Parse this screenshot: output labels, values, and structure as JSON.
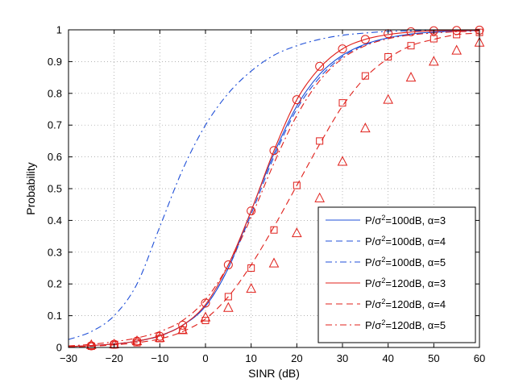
{
  "chart_data": {
    "type": "line",
    "xlabel": "SINR (dB)",
    "ylabel": "Probability",
    "xlim": [
      -30,
      60
    ],
    "ylim": [
      0,
      1
    ],
    "xticks": [
      -30,
      -20,
      -10,
      0,
      10,
      20,
      30,
      40,
      50,
      60
    ],
    "xtick_labels": [
      "−30",
      "−20",
      "−10",
      "0",
      "10",
      "20",
      "30",
      "40",
      "50",
      "60"
    ],
    "yticks": [
      0,
      0.1,
      0.2,
      0.3,
      0.4,
      0.5,
      0.6,
      0.7,
      0.8,
      0.9,
      1
    ],
    "ytick_labels": [
      "0",
      "0.1",
      "0.2",
      "0.3",
      "0.4",
      "0.5",
      "0.6",
      "0.7",
      "0.8",
      "0.9",
      "1"
    ],
    "grid": true,
    "legend_position": "bottom-right",
    "legend": [
      {
        "label": "P/σ²=100dB, α=3",
        "prefix": "P/σ",
        "sup": "2",
        "suffix": "=100dB, α=3",
        "color": "#1f4fd8",
        "dash": "solid",
        "marker": "none"
      },
      {
        "label": "P/σ²=100dB, α=4",
        "prefix": "P/σ",
        "sup": "2",
        "suffix": "=100dB, α=4",
        "color": "#1f4fd8",
        "dash": "dashed",
        "marker": "none"
      },
      {
        "label": "P/σ²=100dB, α=5",
        "prefix": "P/σ",
        "sup": "2",
        "suffix": "=100dB, α=5",
        "color": "#1f4fd8",
        "dash": "dashdot",
        "marker": "none"
      },
      {
        "label": "P/σ²=120dB, α=3",
        "prefix": "P/σ",
        "sup": "2",
        "suffix": "=120dB, α=3",
        "color": "#e0201b",
        "dash": "solid",
        "marker": "none"
      },
      {
        "label": "P/σ²=120dB, α=4",
        "prefix": "P/σ",
        "sup": "2",
        "suffix": "=120dB, α=4",
        "color": "#e0201b",
        "dash": "dashed",
        "marker": "none"
      },
      {
        "label": "P/σ²=120dB, α=5",
        "prefix": "P/σ",
        "sup": "2",
        "suffix": "=120dB, α=5",
        "color": "#e0201b",
        "dash": "dashdot",
        "marker": "none"
      }
    ],
    "curves": [
      {
        "color": "#1f4fd8",
        "dash": "solid",
        "x": [
          -30,
          -25,
          -20,
          -15,
          -10,
          -5,
          0,
          5,
          10,
          15,
          20,
          25,
          30,
          35,
          40,
          45,
          50,
          55,
          60
        ],
        "y": [
          0.003,
          0.006,
          0.011,
          0.02,
          0.037,
          0.07,
          0.13,
          0.25,
          0.43,
          0.61,
          0.76,
          0.86,
          0.92,
          0.955,
          0.975,
          0.987,
          0.993,
          0.996,
          0.998
        ]
      },
      {
        "color": "#1f4fd8",
        "dash": "dashed",
        "x": [
          -30,
          -25,
          -20,
          -15,
          -10,
          -5,
          0,
          5,
          10,
          15,
          20,
          25,
          30,
          35,
          40,
          45,
          50,
          55,
          60
        ],
        "y": [
          0.003,
          0.006,
          0.011,
          0.02,
          0.036,
          0.07,
          0.13,
          0.25,
          0.42,
          0.6,
          0.75,
          0.85,
          0.915,
          0.953,
          0.974,
          0.986,
          0.992,
          0.996,
          0.998
        ]
      },
      {
        "color": "#1f4fd8",
        "dash": "dashdot",
        "x": [
          -30,
          -25,
          -20,
          -15,
          -10,
          -5,
          0,
          5,
          10,
          15,
          20,
          25,
          30,
          35,
          40,
          45,
          50,
          55,
          60
        ],
        "y": [
          0.025,
          0.05,
          0.1,
          0.2,
          0.38,
          0.56,
          0.7,
          0.8,
          0.87,
          0.92,
          0.95,
          0.97,
          0.983,
          0.99,
          0.995,
          0.997,
          0.998,
          0.999,
          0.999
        ]
      },
      {
        "color": "#e0201b",
        "dash": "solid",
        "x": [
          -30,
          -25,
          -20,
          -15,
          -10,
          -5,
          0,
          5,
          10,
          15,
          20,
          25,
          30,
          35,
          40,
          45,
          50,
          55,
          60
        ],
        "y": [
          0.003,
          0.006,
          0.011,
          0.02,
          0.037,
          0.07,
          0.135,
          0.26,
          0.43,
          0.62,
          0.78,
          0.88,
          0.94,
          0.97,
          0.985,
          0.993,
          0.997,
          0.998,
          0.999
        ]
      },
      {
        "color": "#e0201b",
        "dash": "dashed",
        "x": [
          -30,
          -25,
          -20,
          -15,
          -10,
          -5,
          0,
          5,
          10,
          15,
          20,
          25,
          30,
          35,
          40,
          45,
          50,
          55,
          60
        ],
        "y": [
          0.002,
          0.004,
          0.008,
          0.015,
          0.027,
          0.05,
          0.09,
          0.16,
          0.26,
          0.38,
          0.51,
          0.64,
          0.76,
          0.85,
          0.91,
          0.95,
          0.97,
          0.985,
          0.99
        ]
      },
      {
        "color": "#e0201b",
        "dash": "dashdot",
        "x": [
          -30,
          -25,
          -20,
          -15,
          -10,
          -5,
          0,
          5,
          10,
          15,
          20,
          25,
          30,
          35,
          40,
          45,
          50,
          55,
          60
        ],
        "y": [
          0.005,
          0.01,
          0.018,
          0.03,
          0.05,
          0.085,
          0.15,
          0.26,
          0.41,
          0.58,
          0.73,
          0.84,
          0.91,
          0.95,
          0.972,
          0.984,
          0.99,
          0.994,
          0.996
        ]
      }
    ],
    "marker_series": [
      {
        "marker": "circle",
        "color": "#e0201b",
        "x": [
          -25,
          -20,
          -15,
          -10,
          -5,
          0,
          5,
          10,
          15,
          20,
          25,
          30,
          35,
          40,
          45,
          50,
          55,
          60
        ],
        "y": [
          0.005,
          0.01,
          0.02,
          0.035,
          0.07,
          0.14,
          0.26,
          0.43,
          0.62,
          0.78,
          0.885,
          0.94,
          0.97,
          0.988,
          0.994,
          0.997,
          0.998,
          0.999
        ]
      },
      {
        "marker": "square",
        "color": "#e0201b",
        "x": [
          -25,
          -20,
          -15,
          -10,
          -5,
          0,
          5,
          10,
          15,
          20,
          25,
          30,
          35,
          40,
          45,
          50,
          55,
          60
        ],
        "y": [
          0.004,
          0.008,
          0.015,
          0.028,
          0.055,
          0.085,
          0.16,
          0.25,
          0.37,
          0.51,
          0.65,
          0.77,
          0.855,
          0.915,
          0.95,
          0.972,
          0.985,
          0.992
        ]
      },
      {
        "marker": "triangle",
        "color": "#e0201b",
        "x": [
          -25,
          -20,
          -15,
          -10,
          -5,
          0,
          5,
          10,
          15,
          20,
          25,
          30,
          35,
          40,
          45,
          50,
          55,
          60
        ],
        "y": [
          0.008,
          0.01,
          0.02,
          0.03,
          0.055,
          0.095,
          0.125,
          0.185,
          0.265,
          0.36,
          0.47,
          0.585,
          0.69,
          0.78,
          0.85,
          0.9,
          0.935,
          0.96
        ]
      }
    ]
  }
}
